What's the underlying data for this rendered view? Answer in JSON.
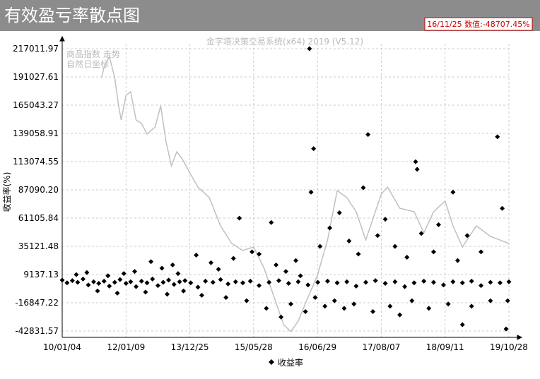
{
  "chart_data": {
    "type": "scatter",
    "title": "有效盈亏率散点图",
    "info_box": "16/11/25 数值:-48707.45%",
    "watermark": "金字塔决策交易系统(x64) 2019 (V5.12)",
    "note": "自然日坐标",
    "ylabel": "收益率(%)",
    "grid": true,
    "xlim": [
      "10/01/04",
      "19/10/28"
    ],
    "xticks": [
      "10/01/04",
      "12/01/09",
      "13/12/25",
      "15/05/28",
      "16/06/29",
      "17/08/07",
      "18/09/11",
      "19/10/28"
    ],
    "ylim": [
      -48700,
      221560
    ],
    "yticks": [
      217011.97,
      191027.61,
      165043.27,
      139058.91,
      113074.55,
      {
        "value": 87090.2,
        "label": "87090.20"
      },
      61105.84,
      35121.48,
      9137.13,
      -16847.22,
      -42831.57
    ],
    "series": [
      {
        "name": "收益率",
        "color": "#000000",
        "x": [
          "10/01/04",
          "10/03/01",
          "10/05/01",
          "10/07/01",
          "10/09/01",
          "10/11/01",
          "11/01/01",
          "11/03/01",
          "11/05/01",
          "11/07/01",
          "11/09/01",
          "11/11/01",
          "12/01/09",
          "12/03/01",
          "12/05/01",
          "12/07/01",
          "12/09/01",
          "12/11/01",
          "13/01/01",
          "13/03/01",
          "13/05/01",
          "13/07/01",
          "13/09/01",
          "13/11/01",
          "14/01/01",
          "14/03/01",
          "14/05/01",
          "14/07/01",
          "14/09/01",
          "14/11/01",
          "15/01/01",
          "15/03/01",
          "15/05/01",
          "15/07/01",
          "15/09/01",
          "15/11/01",
          "16/01/01",
          "16/03/01",
          "16/05/01",
          "16/07/01",
          "16/09/01",
          "16/11/01",
          "17/01/01",
          "17/03/01",
          "17/05/01",
          "17/07/01",
          "17/09/01",
          "17/11/01",
          "18/01/01",
          "18/03/01",
          "18/05/01",
          "18/07/01",
          "18/09/01",
          "18/11/01",
          "19/01/01",
          "19/03/01",
          "19/05/01",
          "19/07/01",
          "19/09/01",
          "19/10/28",
          "10/06/15",
          "10/10/15",
          "11/02/15",
          "11/06/15",
          "11/10/01",
          "11/12/15",
          "12/04/15",
          "12/08/15",
          "12/10/15",
          "13/02/15",
          "13/04/15",
          "13/06/15",
          "13/08/15",
          "13/10/15",
          "14/02/15",
          "14/04/01",
          "14/06/15",
          "14/08/15",
          "14/10/15",
          "14/12/15",
          "15/02/01",
          "15/04/01",
          "15/05/15",
          "15/07/01",
          "15/08/15",
          "15/09/15",
          "15/10/15",
          "15/11/15",
          "15/12/15",
          "16/01/15",
          "16/02/15",
          "16/03/15",
          "16/04/15",
          "16/05/10",
          "16/05/20",
          "16/06/05",
          "16/06/15",
          "16/07/15",
          "16/08/15",
          "16/09/15",
          "16/10/15",
          "16/11/15",
          "16/12/15",
          "17/01/15",
          "17/02/15",
          "17/03/15",
          "17/04/15",
          "17/05/15",
          "17/06/15",
          "17/07/15",
          "17/09/01",
          "17/10/01",
          "17/11/01",
          "17/12/01",
          "18/01/15",
          "18/02/15",
          "18/03/10",
          "18/03/20",
          "18/04/15",
          "18/06/01",
          "18/07/01",
          "18/08/01",
          "18/10/01",
          "18/11/01",
          "18/12/01",
          "19/01/01",
          "19/02/01",
          "19/03/01",
          "19/05/01",
          "19/07/01",
          "19/08/15",
          "19/09/15",
          "19/10/10",
          "19/10/20"
        ],
        "values": [
          4000,
          1500,
          3500,
          2000,
          5000,
          -500,
          2500,
          1000,
          3000,
          -1500,
          2000,
          4500,
          1000,
          2500,
          -2000,
          3000,
          1500,
          5000,
          -1000,
          2000,
          4000,
          0,
          2500,
          3500,
          1500,
          -2500,
          3000,
          2000,
          4500,
          500,
          2500,
          1500,
          3000,
          -1000,
          2000,
          3500,
          1000,
          2500,
          -500,
          2000,
          3000,
          1500,
          2500,
          -1500,
          2000,
          3500,
          1000,
          2500,
          -2000,
          1500,
          3000,
          2000,
          -500,
          2500,
          1500,
          3000,
          -1000,
          2000,
          1500,
          2500,
          9000,
          11000,
          -6000,
          8000,
          -8000,
          10000,
          12000,
          -7000,
          21000,
          15000,
          -9000,
          18000,
          10000,
          -6000,
          27000,
          -10000,
          20000,
          14000,
          -12000,
          24000,
          61000,
          -15000,
          30000,
          28000,
          -22000,
          57000,
          18000,
          -30000,
          12000,
          -18000,
          22000,
          8000,
          -25000,
          217000,
          85000,
          125000,
          -12000,
          35000,
          -20000,
          52000,
          -15000,
          66000,
          -22000,
          40000,
          -18000,
          28000,
          89000,
          138000,
          -25000,
          45000,
          60000,
          -20000,
          35000,
          -28000,
          25000,
          -15000,
          113000,
          106000,
          47000,
          -22000,
          30000,
          55000,
          -18000,
          85000,
          22000,
          -37000,
          45000,
          -20000,
          30000,
          -15000,
          136000,
          70000,
          -41000,
          -15000
        ]
      },
      {
        "name": "商品指数 走势",
        "color": "#c0c0c0",
        "type": "line",
        "x": [
          "11/04/01",
          "11/05/01",
          "11/07/01",
          "11/09/01",
          "11/10/15",
          "11/11/15",
          "12/01/09",
          "12/03/01",
          "12/05/01",
          "12/07/01",
          "12/09/01",
          "12/12/01",
          "13/02/01",
          "13/04/01",
          "13/06/01",
          "13/08/01",
          "13/10/01",
          "13/12/25",
          "14/03/01",
          "14/06/01",
          "14/09/01",
          "14/12/01",
          "15/03/01",
          "15/05/28",
          "15/08/01",
          "15/10/01",
          "15/12/01",
          "16/01/15",
          "16/03/01",
          "16/04/15",
          "16/06/29",
          "16/09/01",
          "16/11/01",
          "17/01/01",
          "17/03/01",
          "17/05/01",
          "17/08/07",
          "17/09/15",
          "17/12/01",
          "18/03/01",
          "18/05/01",
          "18/07/01",
          "18/09/11",
          "18/11/01",
          "19/01/01",
          "19/04/01",
          "19/07/01",
          "19/10/28"
        ],
        "values": [
          190000,
          200122,
          209867,
          190378,
          164394,
          151402,
          174138,
          177385,
          151402,
          148154,
          138410,
          144906,
          164394,
          131914,
          109178,
          122170,
          115674,
          102682,
          89690,
          79947,
          53964,
          37724,
          31228,
          34476,
          14986,
          -11001,
          -36985,
          -43481,
          -33737,
          -17497,
          8490,
          40972,
          86440,
          79947,
          66954,
          40972,
          83194,
          89690,
          70202,
          66954,
          47468,
          66954,
          76698,
          53964,
          34476,
          53964,
          44220,
          37724
        ]
      }
    ]
  }
}
